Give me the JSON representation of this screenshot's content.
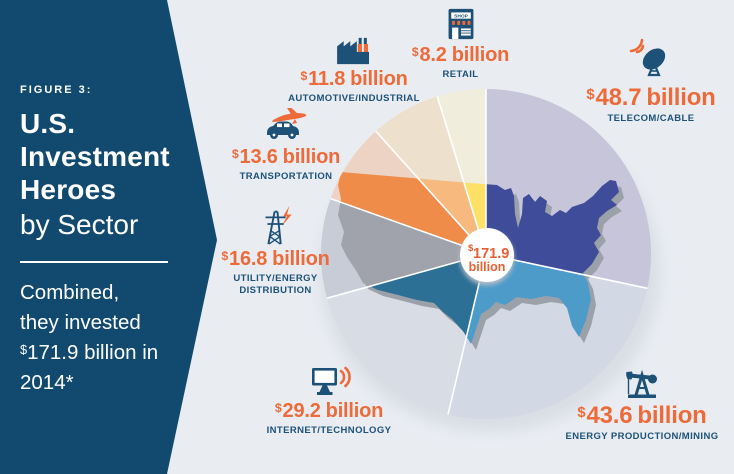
{
  "colors": {
    "background": "#e9edf2",
    "banner_navy": "#114a6e",
    "accent_orange": "#ed6b3a",
    "label_navy": "#1d5177",
    "map_shadow": "#9ba1a9",
    "pie_shadow": "#d9dee5",
    "center_circle": "#ffffff",
    "center_text_orange": "#e85f30"
  },
  "sidebar": {
    "figure_label": "FIGURE 3:",
    "title_line1": "U.S.",
    "title_line2": "Investment",
    "title_line3": "Heroes",
    "subtitle": "by Sector",
    "description": {
      "line1": "Combined,",
      "line2": "they invested",
      "line3_currency": "$",
      "line3_rest": "171.9 billion in",
      "line4": "2014*"
    }
  },
  "chart_data": {
    "type": "pie",
    "title": "U.S. Investment Heroes by Sector",
    "units": "USD billions",
    "total_value": 171.9,
    "center_label": {
      "currency": "$",
      "number": "171.9",
      "unit": "billion"
    },
    "start_angle_deg": 0,
    "direction": "clockwise",
    "overlay": "US map silhouette tinted with saturated segment colors over pale pie slices",
    "legend_position": "labels around chart",
    "segments": [
      {
        "id": "telecom",
        "name": "TELECOM/CABLE",
        "currency": "$",
        "number": "48.7",
        "unit": "billion",
        "value": 48.7,
        "pale_color": "#c7c5da",
        "map_color": "#3e4c9a",
        "icon": "satellite-dish"
      },
      {
        "id": "energy",
        "name": "ENERGY PRODUCTION/MINING",
        "currency": "$",
        "number": "43.6",
        "unit": "billion",
        "value": 43.6,
        "pale_color": "#d2d8e4",
        "map_color": "#4d9bc9",
        "icon": "oil-pumpjack"
      },
      {
        "id": "internet",
        "name": "INTERNET/TECHNOLOGY",
        "currency": "$",
        "number": "29.2",
        "unit": "billion",
        "value": 29.2,
        "pale_color": "#d8dde5",
        "map_color": "#2d7095",
        "icon": "computer-monitor"
      },
      {
        "id": "utility",
        "name": "UTILITY/ENERGY DISTRIBUTION",
        "currency": "$",
        "number": "16.8",
        "unit": "billion",
        "value": 16.8,
        "pale_color": "#c8ccd7",
        "map_color": "#a0a3ab",
        "icon": "transmission-tower"
      },
      {
        "id": "transportation",
        "name": "TRANSPORTATION",
        "currency": "$",
        "number": "13.6",
        "unit": "billion",
        "value": 13.6,
        "pale_color": "#edd3c3",
        "map_color": "#f08c4a",
        "icon": "car-and-plane"
      },
      {
        "id": "automotive",
        "name": "AUTOMOTIVE/INDUSTRIAL",
        "currency": "$",
        "number": "11.8",
        "unit": "billion",
        "value": 11.8,
        "pale_color": "#ede1ce",
        "map_color": "#f7b97d",
        "icon": "factory"
      },
      {
        "id": "retail",
        "name": "RETAIL",
        "currency": "$",
        "number": "8.2",
        "unit": "billion",
        "value": 8.2,
        "pale_color": "#f1eddc",
        "map_color": "#ffe066",
        "icon": "storefront",
        "icon_text": "SHOP"
      }
    ]
  }
}
